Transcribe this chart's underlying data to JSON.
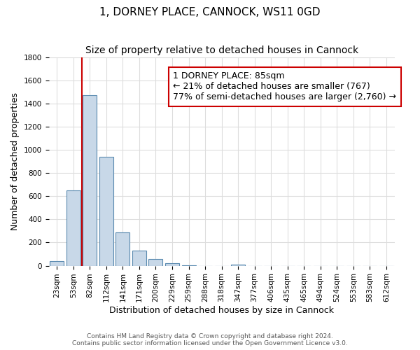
{
  "title": "1, DORNEY PLACE, CANNOCK, WS11 0GD",
  "subtitle": "Size of property relative to detached houses in Cannock",
  "xlabel": "Distribution of detached houses by size in Cannock",
  "ylabel": "Number of detached properties",
  "bin_labels": [
    "23sqm",
    "53sqm",
    "82sqm",
    "112sqm",
    "141sqm",
    "171sqm",
    "200sqm",
    "229sqm",
    "259sqm",
    "288sqm",
    "318sqm",
    "347sqm",
    "377sqm",
    "406sqm",
    "435sqm",
    "465sqm",
    "494sqm",
    "524sqm",
    "553sqm",
    "583sqm",
    "612sqm"
  ],
  "bin_values": [
    40,
    650,
    1470,
    940,
    285,
    130,
    60,
    22,
    5,
    0,
    0,
    12,
    0,
    0,
    0,
    0,
    0,
    0,
    0,
    0,
    0
  ],
  "bar_color": "#c8d8e8",
  "bar_edge_color": "#5a8ab0",
  "property_line_color": "#cc0000",
  "property_line_xindex": 1.5,
  "ylim": [
    0,
    1800
  ],
  "yticks": [
    0,
    200,
    400,
    600,
    800,
    1000,
    1200,
    1400,
    1600,
    1800
  ],
  "annotation_line1": "1 DORNEY PLACE: 85sqm",
  "annotation_line2": "← 21% of detached houses are smaller (767)",
  "annotation_line3": "77% of semi-detached houses are larger (2,760) →",
  "annotation_box_color": "#ffffff",
  "annotation_box_edge": "#cc0000",
  "footer_line1": "Contains HM Land Registry data © Crown copyright and database right 2024.",
  "footer_line2": "Contains public sector information licensed under the Open Government Licence v3.0.",
  "grid_color": "#dddddd",
  "title_fontsize": 11,
  "subtitle_fontsize": 10,
  "axis_label_fontsize": 9,
  "tick_fontsize": 7.5,
  "annotation_fontsize": 9
}
